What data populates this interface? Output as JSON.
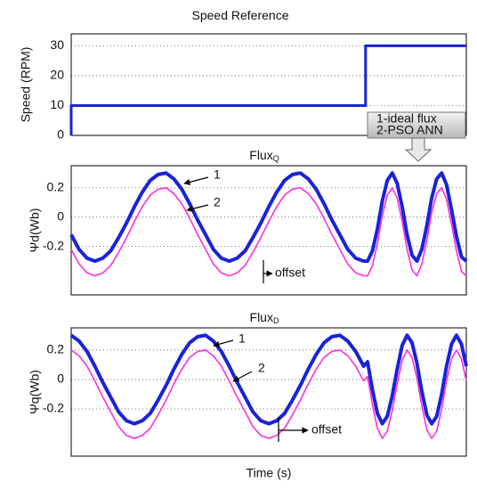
{
  "chart_data": [
    {
      "type": "line",
      "title": "Speed Reference",
      "y_label": "Speed (RPM)",
      "x": [
        0,
        0,
        0.745,
        0.745,
        1
      ],
      "values": [
        0,
        10,
        10,
        30,
        30
      ],
      "color": "#1a22d8",
      "xlim": [
        0,
        1
      ],
      "ylim": [
        0,
        34
      ],
      "yticks": [
        0,
        10,
        20,
        30
      ],
      "grid": true
    },
    {
      "type": "line",
      "title": "Flux",
      "title_sub": "Q",
      "y_label": "Ψd(Wb)",
      "x": [
        0,
        0.02,
        0.04,
        0.06,
        0.08,
        0.1,
        0.12,
        0.14,
        0.16,
        0.18,
        0.2,
        0.22,
        0.24,
        0.26,
        0.28,
        0.3,
        0.32,
        0.34,
        0.36,
        0.38,
        0.4,
        0.42,
        0.44,
        0.46,
        0.48,
        0.5,
        0.52,
        0.54,
        0.56,
        0.58,
        0.6,
        0.62,
        0.64,
        0.66,
        0.68,
        0.7,
        0.72,
        0.74,
        0.75,
        0.7625,
        0.775,
        0.7875,
        0.8,
        0.8125,
        0.825,
        0.8375,
        0.85,
        0.8625,
        0.875,
        0.8875,
        0.9,
        0.9125,
        0.925,
        0.9375,
        0.95,
        0.9625,
        0.975,
        0.9875,
        1.0
      ],
      "series": [
        {
          "name": "1-ideal flux",
          "color": "#1a22d8",
          "values": [
            -0.12,
            -0.22,
            -0.28,
            -0.3,
            -0.28,
            -0.23,
            -0.14,
            -0.04,
            0.07,
            0.17,
            0.25,
            0.29,
            0.3,
            0.26,
            0.19,
            0.09,
            -0.02,
            -0.12,
            -0.22,
            -0.28,
            -0.3,
            -0.28,
            -0.23,
            -0.14,
            -0.04,
            0.07,
            0.17,
            0.25,
            0.29,
            0.3,
            0.26,
            0.19,
            0.09,
            -0.02,
            -0.12,
            -0.22,
            -0.28,
            -0.3,
            -0.3,
            -0.23,
            -0.08,
            0.11,
            0.25,
            0.3,
            0.23,
            0.07,
            -0.12,
            -0.26,
            -0.3,
            -0.22,
            -0.06,
            0.13,
            0.26,
            0.3,
            0.22,
            0.05,
            -0.13,
            -0.27,
            -0.3
          ]
        },
        {
          "name": "2-PSO ANN",
          "color": "#ff2ee0",
          "values": [
            -0.22,
            -0.32,
            -0.38,
            -0.4,
            -0.38,
            -0.33,
            -0.24,
            -0.14,
            -0.03,
            0.07,
            0.15,
            0.19,
            0.2,
            0.16,
            0.09,
            -0.01,
            -0.12,
            -0.22,
            -0.32,
            -0.38,
            -0.4,
            -0.38,
            -0.33,
            -0.24,
            -0.14,
            -0.03,
            0.07,
            0.15,
            0.19,
            0.2,
            0.16,
            0.09,
            -0.01,
            -0.12,
            -0.22,
            -0.32,
            -0.38,
            -0.4,
            -0.4,
            -0.33,
            -0.18,
            0.01,
            0.15,
            0.2,
            0.13,
            -0.03,
            -0.22,
            -0.36,
            -0.4,
            -0.32,
            -0.16,
            0.03,
            0.16,
            0.2,
            0.12,
            -0.05,
            -0.23,
            -0.37,
            -0.4
          ]
        }
      ],
      "annotations": [
        "1",
        "2",
        "offset"
      ],
      "xlim": [
        0,
        1
      ],
      "ylim": [
        -0.53,
        0.35
      ],
      "yticks": [
        {
          "value": -0.2,
          "label": "-0.2"
        },
        0,
        {
          "value": 0.2,
          "label": "0.2"
        }
      ],
      "grid": true
    },
    {
      "type": "line",
      "title": "Flux",
      "title_sub": "D",
      "y_label": "Ψq(Wb)",
      "x_label": "Time (s)",
      "x": [
        0,
        0.02,
        0.04,
        0.06,
        0.08,
        0.1,
        0.12,
        0.14,
        0.16,
        0.18,
        0.2,
        0.22,
        0.24,
        0.26,
        0.28,
        0.3,
        0.32,
        0.34,
        0.36,
        0.38,
        0.4,
        0.42,
        0.44,
        0.46,
        0.48,
        0.5,
        0.52,
        0.54,
        0.56,
        0.58,
        0.6,
        0.62,
        0.64,
        0.66,
        0.68,
        0.7,
        0.72,
        0.74,
        0.75,
        0.7625,
        0.775,
        0.7875,
        0.8,
        0.8125,
        0.825,
        0.8375,
        0.85,
        0.8625,
        0.875,
        0.8875,
        0.9,
        0.9125,
        0.925,
        0.9375,
        0.95,
        0.9625,
        0.975,
        0.9875,
        1.0
      ],
      "series": [
        {
          "color": "#1a22d8",
          "values": [
            0.3,
            0.26,
            0.19,
            0.09,
            -0.02,
            -0.12,
            -0.22,
            -0.28,
            -0.3,
            -0.28,
            -0.23,
            -0.14,
            -0.04,
            0.07,
            0.17,
            0.25,
            0.29,
            0.3,
            0.26,
            0.19,
            0.09,
            -0.02,
            -0.12,
            -0.22,
            -0.28,
            -0.3,
            -0.28,
            -0.23,
            -0.14,
            -0.04,
            0.07,
            0.17,
            0.25,
            0.29,
            0.3,
            0.26,
            0.19,
            0.09,
            0.12,
            -0.07,
            -0.23,
            -0.3,
            -0.25,
            -0.11,
            0.07,
            0.23,
            0.3,
            0.25,
            0.11,
            -0.08,
            -0.24,
            -0.3,
            -0.25,
            -0.1,
            0.09,
            0.24,
            0.3,
            0.24,
            0.09
          ]
        },
        {
          "color": "#ff2ee0",
          "values": [
            0.2,
            0.16,
            0.09,
            -0.01,
            -0.12,
            -0.22,
            -0.32,
            -0.38,
            -0.4,
            -0.38,
            -0.33,
            -0.24,
            -0.14,
            -0.03,
            0.07,
            0.15,
            0.19,
            0.2,
            0.16,
            0.09,
            -0.01,
            -0.12,
            -0.22,
            -0.32,
            -0.38,
            -0.4,
            -0.38,
            -0.33,
            -0.24,
            -0.14,
            -0.03,
            0.07,
            0.15,
            0.19,
            0.2,
            0.16,
            0.09,
            -0.01,
            0.02,
            -0.17,
            -0.33,
            -0.4,
            -0.35,
            -0.21,
            -0.03,
            0.13,
            0.2,
            0.15,
            0.01,
            -0.18,
            -0.34,
            -0.4,
            -0.35,
            -0.2,
            -0.01,
            0.14,
            0.2,
            0.14,
            -0.01
          ]
        }
      ],
      "annotations": [
        "1",
        "2",
        "offset"
      ],
      "xlim": [
        0,
        1
      ],
      "ylim": [
        -0.52,
        0.35
      ],
      "yticks": [
        {
          "value": -0.2,
          "label": "-0.2"
        },
        0,
        {
          "value": 0.2,
          "label": "0.2"
        }
      ],
      "grid": true
    }
  ]
}
